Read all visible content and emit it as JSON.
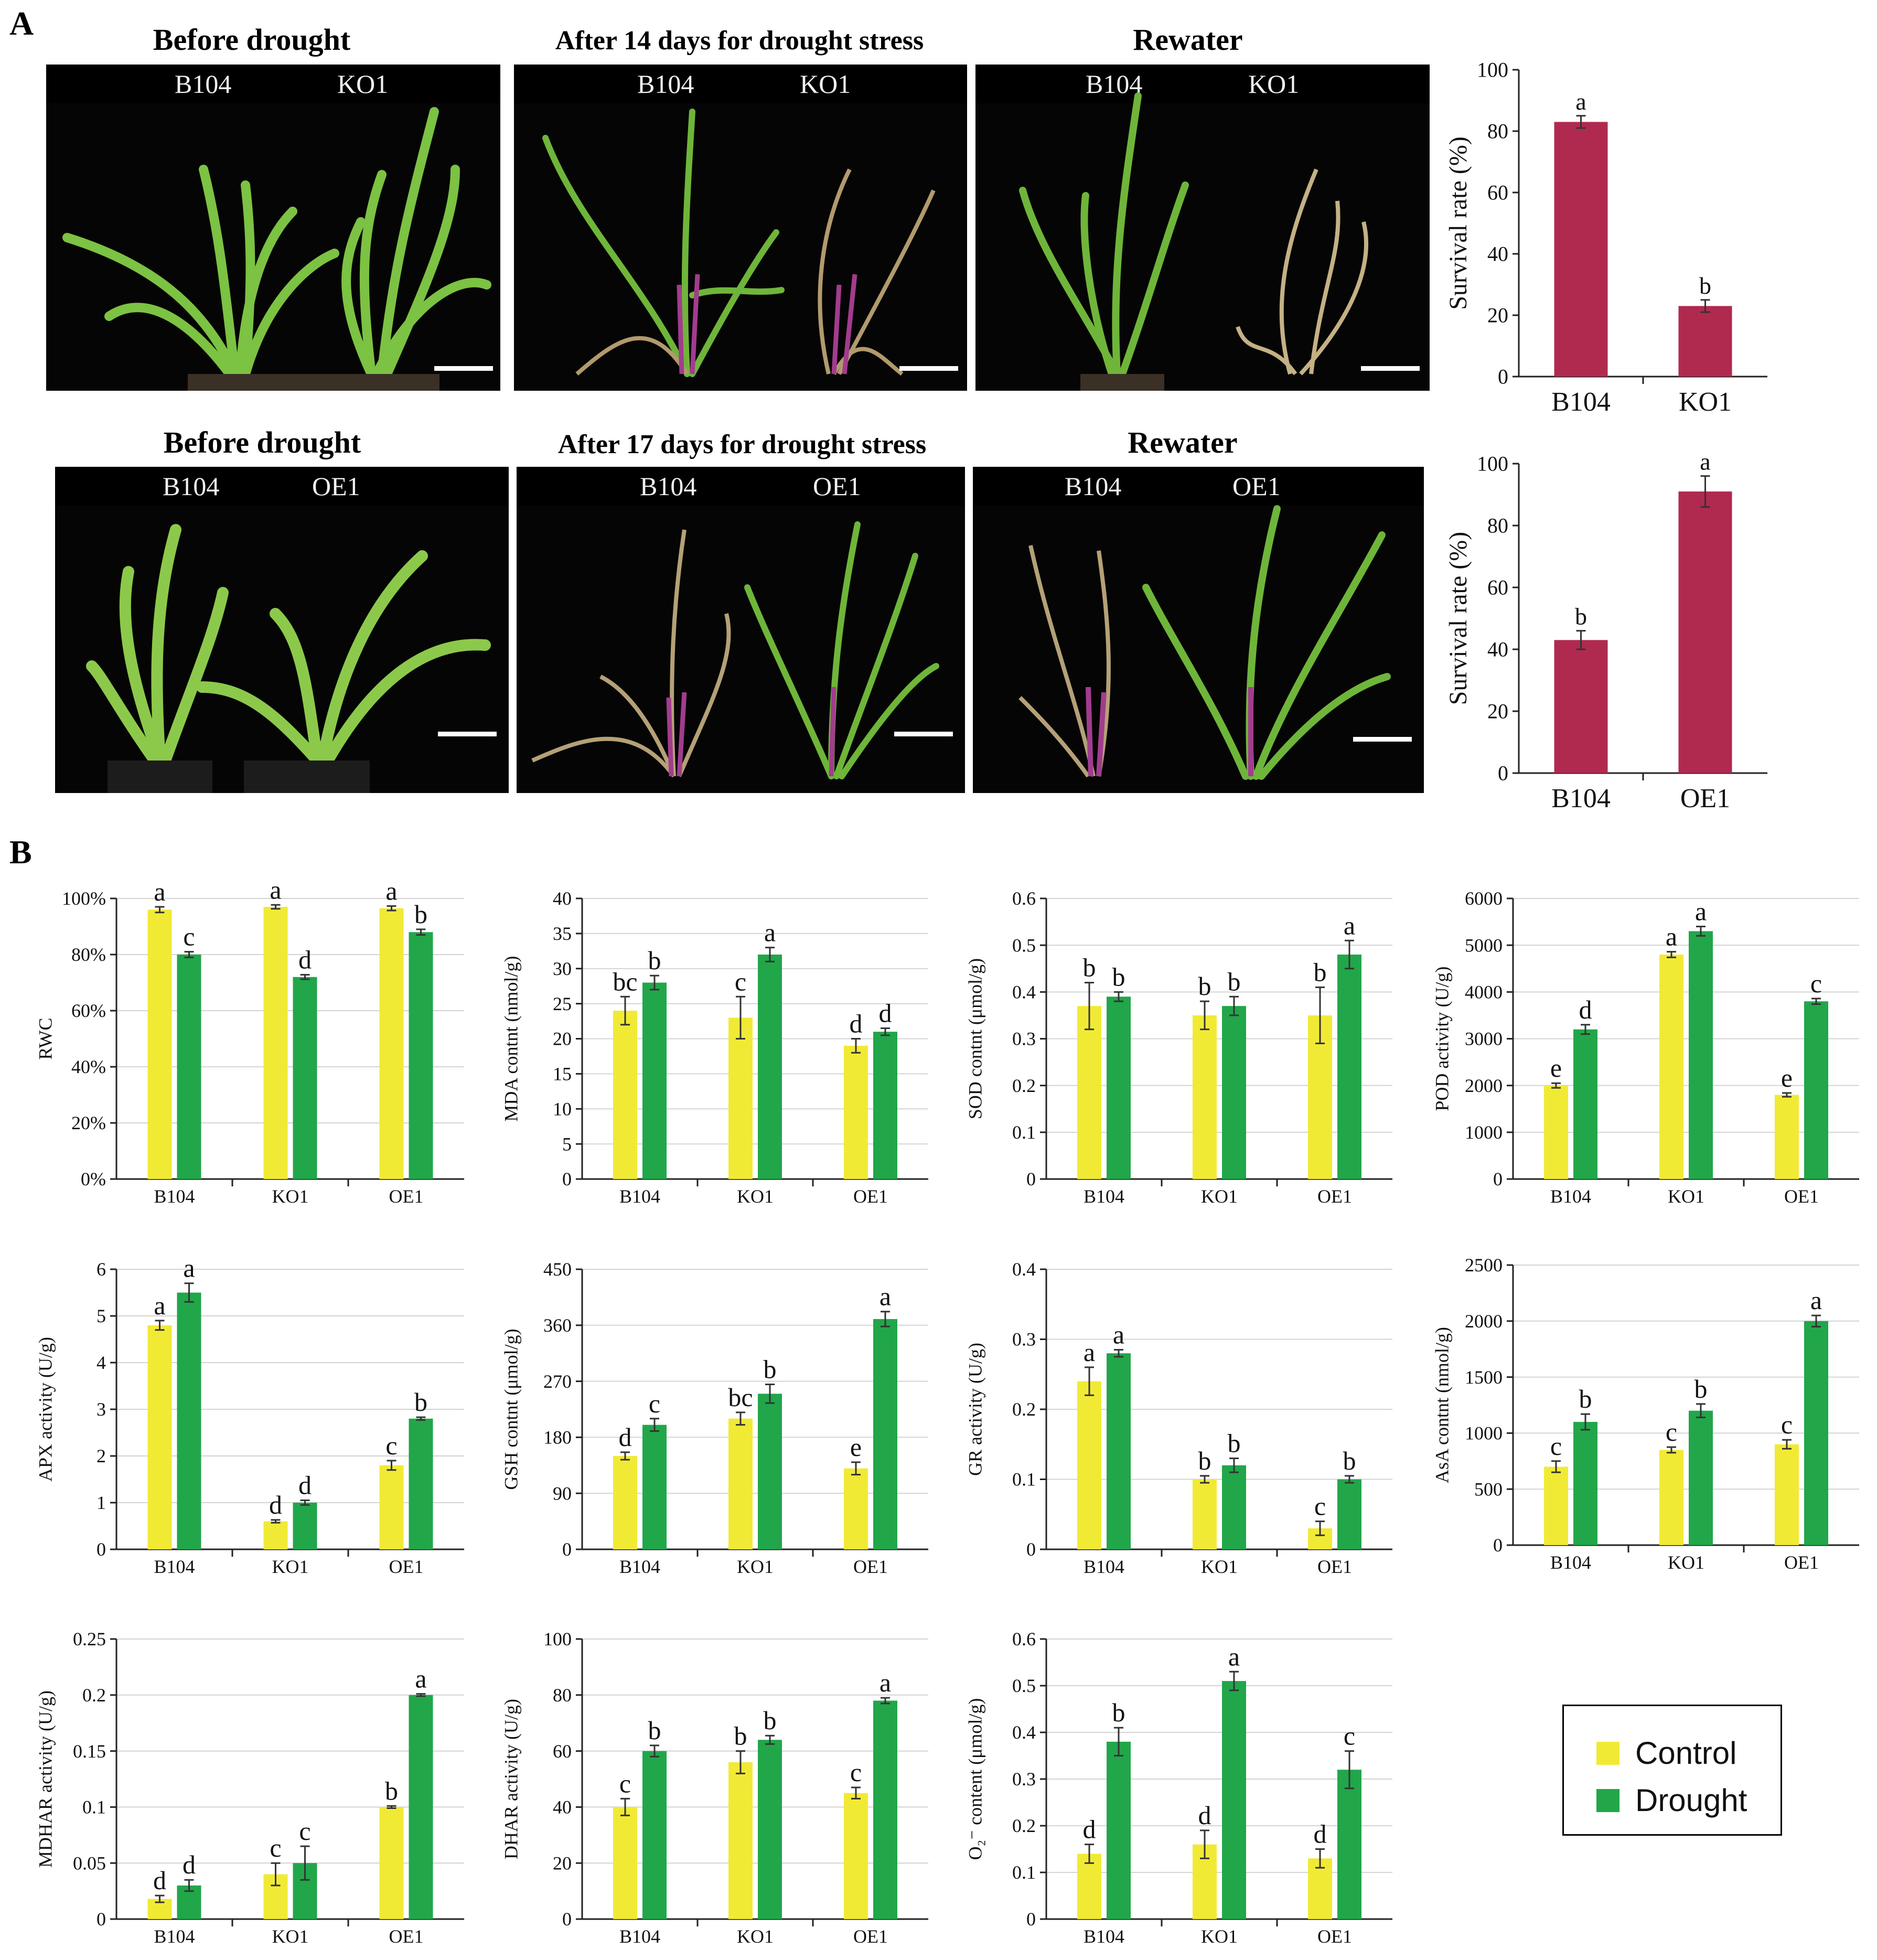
{
  "panels": {
    "a": "A",
    "b": "B"
  },
  "photos": [
    {
      "title": "Before drought",
      "labels": [
        "B104",
        "KO1"
      ]
    },
    {
      "title": "After 14 days for drought stress",
      "labels": [
        "B104",
        "KO1"
      ]
    },
    {
      "title": "Rewater",
      "labels": [
        "B104",
        "KO1"
      ]
    },
    {
      "title": "Before drought",
      "labels": [
        "B104",
        "OE1"
      ]
    },
    {
      "title": "After 17 days for drought stress",
      "labels": [
        "B104",
        "OE1"
      ]
    },
    {
      "title": "Rewater",
      "labels": [
        "B104",
        "OE1"
      ]
    }
  ],
  "legend": {
    "control": "Control",
    "drought": "Drought"
  },
  "colors": {
    "survival": "#b02a4f",
    "control": "#f1ea35",
    "drought": "#22a64a",
    "leaf": "#7cc243",
    "purple": "#a23c8e"
  },
  "chart_data": [
    {
      "id": "survival-ko",
      "type": "bar",
      "title": "",
      "ylabel": "Survival rate (%)",
      "ylim": [
        0,
        100
      ],
      "yticks": [
        "0",
        "20",
        "40",
        "60",
        "80",
        "100"
      ],
      "categories": [
        "B104",
        "KO1"
      ],
      "series": [
        {
          "values": [
            83,
            23
          ],
          "errors": [
            2,
            2
          ],
          "letters": [
            "a",
            "b"
          ]
        }
      ]
    },
    {
      "id": "survival-oe",
      "type": "bar",
      "title": "",
      "ylabel": "Survival rate (%)",
      "ylim": [
        0,
        100
      ],
      "yticks": [
        "0",
        "20",
        "40",
        "60",
        "80",
        "100"
      ],
      "categories": [
        "B104",
        "OE1"
      ],
      "series": [
        {
          "values": [
            43,
            91
          ],
          "errors": [
            3,
            5
          ],
          "letters": [
            "b",
            "a"
          ]
        }
      ]
    },
    {
      "id": "rwc",
      "type": "bar",
      "ylabel": "RWC",
      "ylim": [
        0,
        100
      ],
      "yticks": [
        "0%",
        "20%",
        "40%",
        "60%",
        "80%",
        "100%"
      ],
      "grid": true,
      "categories": [
        "B104",
        "KO1",
        "OE1"
      ],
      "series": [
        {
          "name": "Control",
          "values": [
            96,
            97,
            96.5
          ],
          "errors": [
            1,
            0.7,
            0.8
          ],
          "letters": [
            "a",
            "a",
            "a"
          ]
        },
        {
          "name": "Drought",
          "values": [
            80,
            72,
            88
          ],
          "errors": [
            1,
            0.8,
            1
          ],
          "letters": [
            "c",
            "d",
            "b"
          ]
        }
      ]
    },
    {
      "id": "mda",
      "type": "bar",
      "ylabel": "MDA contnt (nmol/g)",
      "ylim": [
        0,
        40
      ],
      "yticks": [
        "0",
        "5",
        "10",
        "15",
        "20",
        "25",
        "30",
        "35",
        "40"
      ],
      "grid": true,
      "categories": [
        "B104",
        "KO1",
        "OE1"
      ],
      "series": [
        {
          "name": "Control",
          "values": [
            24,
            23,
            19
          ],
          "errors": [
            2,
            3,
            1
          ],
          "letters": [
            "bc",
            "c",
            "d"
          ]
        },
        {
          "name": "Drought",
          "values": [
            28,
            32,
            21
          ],
          "errors": [
            1,
            1,
            0.5
          ],
          "letters": [
            "b",
            "a",
            "d"
          ]
        }
      ]
    },
    {
      "id": "sod",
      "type": "bar",
      "ylabel": "SOD contnt (μmol/g)",
      "ylim": [
        0,
        0.6
      ],
      "yticks": [
        "0",
        "0.1",
        "0.2",
        "0.3",
        "0.4",
        "0.5",
        "0.6"
      ],
      "grid": true,
      "categories": [
        "B104",
        "KO1",
        "OE1"
      ],
      "series": [
        {
          "name": "Control",
          "values": [
            0.37,
            0.35,
            0.35
          ],
          "errors": [
            0.05,
            0.03,
            0.06
          ],
          "letters": [
            "b",
            "b",
            "b"
          ]
        },
        {
          "name": "Drought",
          "values": [
            0.39,
            0.37,
            0.48
          ],
          "errors": [
            0.01,
            0.02,
            0.03
          ],
          "letters": [
            "b",
            "b",
            "a"
          ]
        }
      ]
    },
    {
      "id": "pod",
      "type": "bar",
      "ylabel": "POD activity (U/g)",
      "ylim": [
        0,
        6000
      ],
      "yticks": [
        "0",
        "1000",
        "2000",
        "3000",
        "4000",
        "5000",
        "6000"
      ],
      "grid": true,
      "categories": [
        "B104",
        "KO1",
        "OE1"
      ],
      "series": [
        {
          "name": "Control",
          "values": [
            2000,
            4800,
            1800
          ],
          "errors": [
            50,
            60,
            40
          ],
          "letters": [
            "e",
            "a",
            "e"
          ]
        },
        {
          "name": "Drought",
          "values": [
            3200,
            5300,
            3800
          ],
          "errors": [
            100,
            100,
            60
          ],
          "letters": [
            "d",
            "a",
            "c"
          ]
        }
      ]
    },
    {
      "id": "apx",
      "type": "bar",
      "ylabel": "APX activity (U/g)",
      "ylim": [
        0,
        6
      ],
      "yticks": [
        "0",
        "1",
        "2",
        "3",
        "4",
        "5",
        "6"
      ],
      "grid": true,
      "categories": [
        "B104",
        "KO1",
        "OE1"
      ],
      "series": [
        {
          "name": "Control",
          "values": [
            4.8,
            0.6,
            1.8
          ],
          "errors": [
            0.1,
            0.03,
            0.1
          ],
          "letters": [
            "a",
            "d",
            "c"
          ]
        },
        {
          "name": "Drought",
          "values": [
            5.5,
            1.0,
            2.8
          ],
          "errors": [
            0.2,
            0.05,
            0.03
          ],
          "letters": [
            "a",
            "d",
            "b"
          ]
        }
      ]
    },
    {
      "id": "gsh",
      "type": "bar",
      "ylabel": "GSH contnt (μmol/g)",
      "ylim": [
        0,
        450
      ],
      "yticks": [
        "0",
        "90",
        "180",
        "270",
        "360",
        "450"
      ],
      "grid": true,
      "categories": [
        "B104",
        "KO1",
        "OE1"
      ],
      "series": [
        {
          "name": "Control",
          "values": [
            150,
            210,
            130
          ],
          "errors": [
            6,
            10,
            10
          ],
          "letters": [
            "d",
            "bc",
            "e"
          ]
        },
        {
          "name": "Drought",
          "values": [
            200,
            250,
            370
          ],
          "errors": [
            10,
            15,
            12
          ],
          "letters": [
            "c",
            "b",
            "a"
          ]
        }
      ]
    },
    {
      "id": "gr",
      "type": "bar",
      "ylabel": "GR activity (U/g)",
      "ylim": [
        0,
        0.4
      ],
      "yticks": [
        "0",
        "0.1",
        "0.2",
        "0.3",
        "0.4"
      ],
      "grid": true,
      "categories": [
        "B104",
        "KO1",
        "OE1"
      ],
      "series": [
        {
          "name": "Control",
          "values": [
            0.24,
            0.1,
            0.03
          ],
          "errors": [
            0.02,
            0.005,
            0.01
          ],
          "letters": [
            "a",
            "b",
            "c"
          ]
        },
        {
          "name": "Drought",
          "values": [
            0.28,
            0.12,
            0.1
          ],
          "errors": [
            0.005,
            0.01,
            0.005
          ],
          "letters": [
            "a",
            "b",
            "b"
          ]
        }
      ]
    },
    {
      "id": "asa",
      "type": "bar",
      "ylabel": "AsA contnt (nmol/g)",
      "ylim": [
        0,
        2500
      ],
      "yticks": [
        "0",
        "500",
        "1000",
        "1500",
        "2000",
        "2500"
      ],
      "grid": true,
      "categories": [
        "B104",
        "KO1",
        "OE1"
      ],
      "series": [
        {
          "name": "Control",
          "values": [
            700,
            850,
            900
          ],
          "errors": [
            50,
            25,
            40
          ],
          "letters": [
            "c",
            "c",
            "c"
          ]
        },
        {
          "name": "Drought",
          "values": [
            1100,
            1200,
            2000
          ],
          "errors": [
            70,
            60,
            50
          ],
          "letters": [
            "b",
            "b",
            "a"
          ]
        }
      ]
    },
    {
      "id": "mdhar",
      "type": "bar",
      "ylabel": "MDHAR activity (U/g)",
      "ylim": [
        0,
        0.25
      ],
      "yticks": [
        "0",
        "0.05",
        "0.1",
        "0.15",
        "0.2",
        "0.25"
      ],
      "grid": true,
      "categories": [
        "B104",
        "KO1",
        "OE1"
      ],
      "series": [
        {
          "name": "Control",
          "values": [
            0.018,
            0.04,
            0.1
          ],
          "errors": [
            0.003,
            0.01,
            0.001
          ],
          "letters": [
            "d",
            "c",
            "b"
          ]
        },
        {
          "name": "Drought",
          "values": [
            0.03,
            0.05,
            0.2
          ],
          "errors": [
            0.005,
            0.015,
            0.001
          ],
          "letters": [
            "d",
            "c",
            "a"
          ]
        }
      ]
    },
    {
      "id": "dhar",
      "type": "bar",
      "ylabel": "DHAR activity (U/g)",
      "ylim": [
        0,
        100
      ],
      "yticks": [
        "0",
        "20",
        "40",
        "60",
        "80",
        "100"
      ],
      "grid": true,
      "categories": [
        "B104",
        "KO1",
        "OE1"
      ],
      "series": [
        {
          "name": "Control",
          "values": [
            40,
            56,
            45
          ],
          "errors": [
            3,
            4,
            2
          ],
          "letters": [
            "c",
            "b",
            "c"
          ]
        },
        {
          "name": "Drought",
          "values": [
            60,
            64,
            78
          ],
          "errors": [
            2,
            1.5,
            1
          ],
          "letters": [
            "b",
            "b",
            "a"
          ]
        }
      ]
    },
    {
      "id": "o2",
      "type": "bar",
      "ylabel": "O₂⁻ content (μmol/g)",
      "ylim": [
        0,
        0.6
      ],
      "yticks": [
        "0",
        "0.1",
        "0.2",
        "0.3",
        "0.4",
        "0.5",
        "0.6"
      ],
      "grid": true,
      "categories": [
        "B104",
        "KO1",
        "OE1"
      ],
      "series": [
        {
          "name": "Control",
          "values": [
            0.14,
            0.16,
            0.13
          ],
          "errors": [
            0.02,
            0.03,
            0.02
          ],
          "letters": [
            "d",
            "d",
            "d"
          ]
        },
        {
          "name": "Drought",
          "values": [
            0.38,
            0.51,
            0.32
          ],
          "errors": [
            0.03,
            0.02,
            0.04
          ],
          "letters": [
            "b",
            "a",
            "c"
          ]
        }
      ]
    }
  ]
}
